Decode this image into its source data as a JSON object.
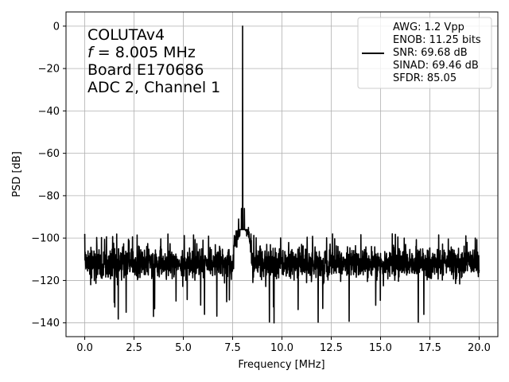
{
  "chart_data": {
    "type": "line",
    "xlabel": "Frequency [MHz]",
    "ylabel": "PSD [dB]",
    "xlim": [
      -0.95,
      20.95
    ],
    "ylim": [
      -146.5,
      6.7
    ],
    "x_ticks": [
      0.0,
      2.5,
      5.0,
      7.5,
      10.0,
      12.5,
      15.0,
      17.5,
      20.0
    ],
    "x_tick_labels": [
      "0.0",
      "2.5",
      "5.0",
      "7.5",
      "10.0",
      "12.5",
      "15.0",
      "17.5",
      "20.0"
    ],
    "y_ticks": [
      0,
      -20,
      -40,
      -60,
      -80,
      -100,
      -120,
      -140
    ],
    "y_tick_labels": [
      "0",
      "−20",
      "−40",
      "−60",
      "−80",
      "−100",
      "−120",
      "−140"
    ],
    "grid": true,
    "legend_position": "top-right",
    "annotation": {
      "line1": "COLUTAv4",
      "line2_italic": "f",
      "line2_rest": " = 8.005 MHz",
      "line3": "Board E170686",
      "line4": "ADC 2, Channel 1"
    },
    "legend_lines": [
      "AWG: 1.2 Vpp",
      "ENOB: 11.25 bits",
      "SNR: 69.68 dB",
      "SINAD: 69.46 dB",
      "SFDR: 85.05"
    ],
    "series": [
      {
        "color": "#000000",
        "description_values": {
          "signal_freq": 8.005,
          "signal_peak": 0,
          "noise_floor_mean": -112,
          "noise_band": [
            -125,
            -101
          ],
          "skirt_peak": -85,
          "f_max": 20.0
        },
        "notable_points": [
          {
            "x": 0.0,
            "y": -98
          },
          {
            "x": 0.3,
            "y": -122
          },
          {
            "x": 2.1,
            "y": -135
          },
          {
            "x": 6.0,
            "y": -101
          },
          {
            "x": 7.2,
            "y": -130
          },
          {
            "x": 7.8,
            "y": -91
          },
          {
            "x": 7.95,
            "y": -86
          },
          {
            "x": 8.005,
            "y": 0
          },
          {
            "x": 8.1,
            "y": -86
          },
          {
            "x": 8.3,
            "y": -95
          },
          {
            "x": 9.6,
            "y": -140
          },
          {
            "x": 15.6,
            "y": -98
          },
          {
            "x": 16.2,
            "y": -100
          },
          {
            "x": 17.2,
            "y": -136
          },
          {
            "x": 19.8,
            "y": -100
          },
          {
            "x": 20.0,
            "y": -115
          }
        ]
      }
    ]
  }
}
